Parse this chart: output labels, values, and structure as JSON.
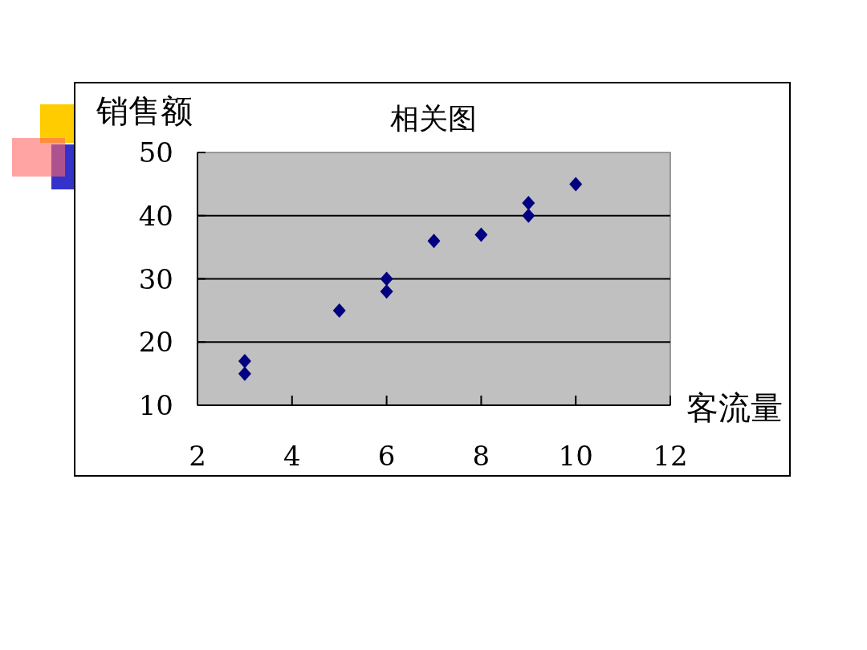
{
  "chart_data": {
    "type": "scatter",
    "title": "相关图",
    "xlabel": "客流量",
    "ylabel": "销售额",
    "x": [
      3,
      3,
      5,
      6,
      6,
      7,
      8,
      9,
      9,
      10
    ],
    "series": [
      {
        "color": "#000080",
        "values": [
          17,
          15,
          25,
          30,
          28,
          36,
          37,
          42,
          40,
          45
        ]
      }
    ],
    "xlim": [
      2,
      12
    ],
    "xticks": [
      2,
      4,
      6,
      8,
      10,
      12
    ],
    "ylim": [
      10,
      50
    ],
    "yticks": [
      10,
      20,
      30,
      40,
      50
    ],
    "grid": "y",
    "marker": "diamond"
  }
}
